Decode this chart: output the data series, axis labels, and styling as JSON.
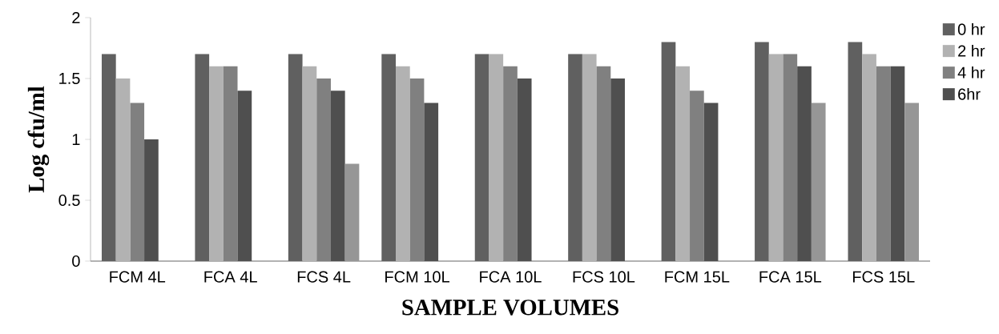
{
  "chart_data": {
    "type": "bar",
    "xlabel": "SAMPLE VOLUMES",
    "ylabel": "Log cfu/ml",
    "categories": [
      "FCM 4L",
      "FCA 4L",
      "FCS 4L",
      "FCM 10L",
      "FCA 10L",
      "FCS 10L",
      "FCM 15L",
      "FCA 15L",
      "FCS 15L"
    ],
    "series": [
      {
        "name": "0 hr",
        "color": "#606060",
        "values": [
          1.7,
          1.7,
          1.7,
          1.7,
          1.7,
          1.7,
          1.8,
          1.8,
          1.8
        ]
      },
      {
        "name": "2 hr",
        "color": "#b2b2b2",
        "values": [
          1.5,
          1.6,
          1.6,
          1.6,
          1.7,
          1.7,
          1.6,
          1.7,
          1.7
        ]
      },
      {
        "name": "4 hr",
        "color": "#808080",
        "values": [
          1.3,
          1.6,
          1.5,
          1.5,
          1.6,
          1.6,
          1.4,
          1.7,
          1.6
        ]
      },
      {
        "name": "6hr",
        "color": "#4f4f4f",
        "values": [
          1.0,
          1.4,
          1.4,
          1.3,
          1.5,
          1.5,
          1.3,
          1.6,
          1.6
        ]
      },
      {
        "color": "#969696",
        "values": [
          null,
          null,
          0.8,
          null,
          null,
          null,
          null,
          1.3,
          1.3
        ]
      }
    ],
    "ylim": [
      0,
      2
    ],
    "yticks": [
      0,
      0.5,
      1,
      1.5,
      2
    ],
    "grid": false,
    "legend": "right"
  }
}
